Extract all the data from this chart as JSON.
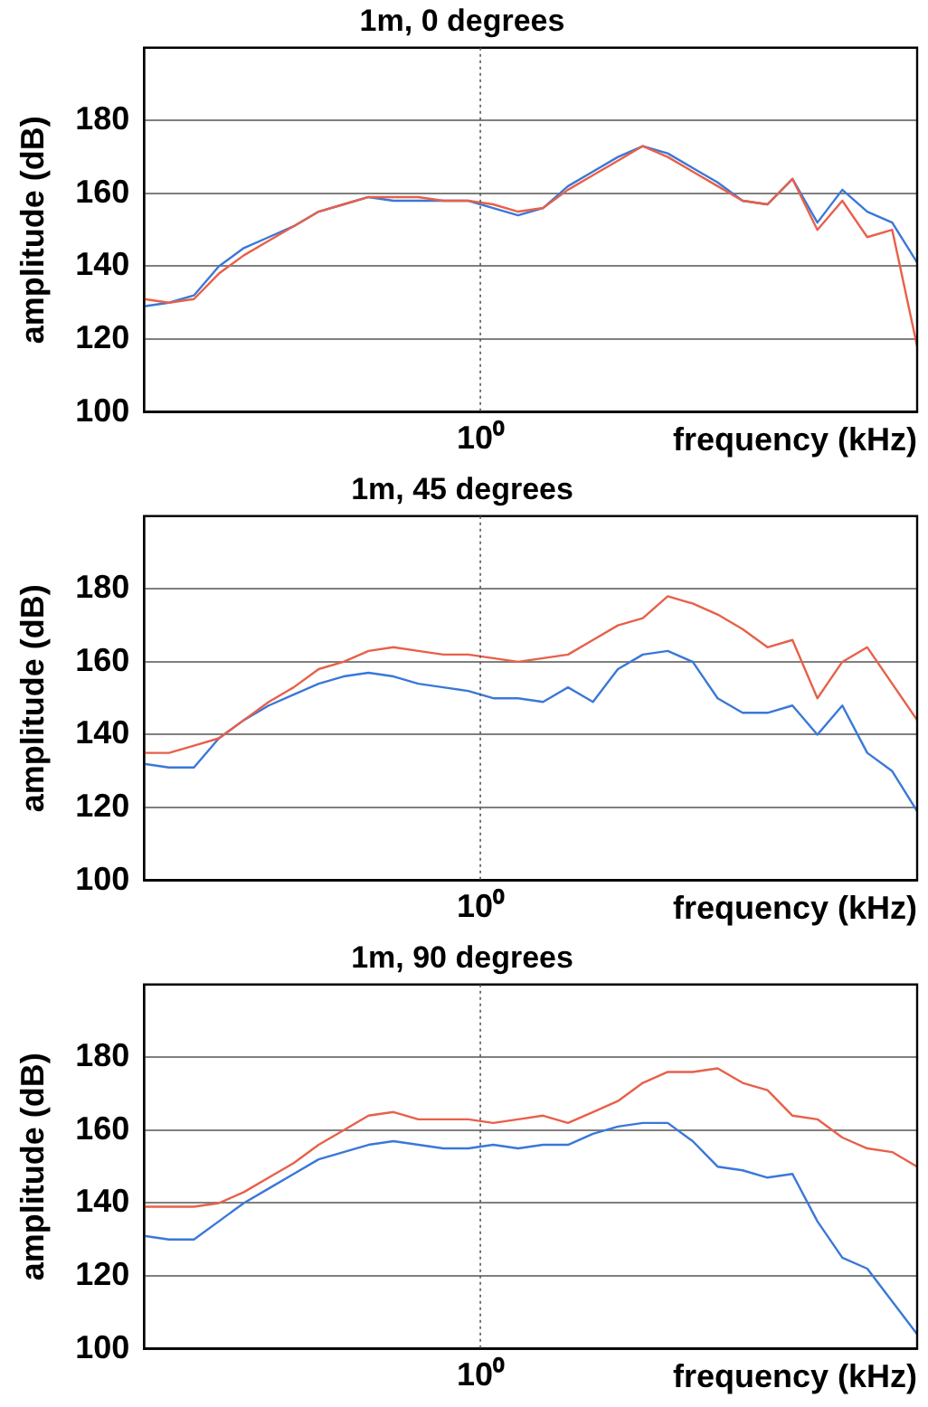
{
  "chart_data": [
    {
      "type": "line",
      "title": "1m, 0 degrees",
      "xlabel": "frequency (kHz)",
      "ylabel": "amplitude (dB)",
      "grid": "y",
      "annotations": [
        "10⁰"
      ],
      "ylim": [
        100,
        200
      ],
      "yticks": [
        100,
        120,
        140,
        160,
        180
      ],
      "categories": [
        null,
        null,
        null,
        null,
        null,
        null,
        null,
        null,
        null,
        null,
        null,
        null,
        null,
        null,
        null,
        null,
        null,
        null,
        null,
        null,
        null,
        null,
        null,
        null,
        null,
        null,
        null,
        null,
        null,
        null,
        null,
        null
      ],
      "series": [
        {
          "color": "#e8604a",
          "values": [
            131,
            130,
            131,
            138,
            143,
            147,
            151,
            155,
            157,
            159,
            159,
            159,
            158,
            158,
            157,
            155,
            156,
            161,
            165,
            169,
            173,
            170,
            166,
            162,
            158,
            157,
            164,
            150,
            158,
            148,
            150,
            118
          ]
        },
        {
          "color": "#3a78d8",
          "values": [
            129,
            130,
            132,
            140,
            145,
            148,
            151,
            155,
            157,
            159,
            158,
            158,
            158,
            158,
            156,
            154,
            156,
            162,
            166,
            170,
            173,
            171,
            167,
            163,
            158,
            157,
            164,
            152,
            161,
            155,
            152,
            141
          ]
        }
      ]
    },
    {
      "type": "line",
      "title": "1m, 45 degrees",
      "xlabel": "frequency (kHz)",
      "ylabel": "amplitude (dB)",
      "grid": "y",
      "annotations": [
        "10⁰"
      ],
      "ylim": [
        100,
        200
      ],
      "yticks": [
        100,
        120,
        140,
        160,
        180
      ],
      "categories": [
        null,
        null,
        null,
        null,
        null,
        null,
        null,
        null,
        null,
        null,
        null,
        null,
        null,
        null,
        null,
        null,
        null,
        null,
        null,
        null,
        null,
        null,
        null,
        null,
        null,
        null,
        null,
        null,
        null,
        null,
        null,
        null
      ],
      "series": [
        {
          "color": "#e8604a",
          "values": [
            135,
            135,
            137,
            139,
            144,
            149,
            153,
            158,
            160,
            163,
            164,
            163,
            162,
            162,
            161,
            160,
            161,
            162,
            166,
            170,
            172,
            178,
            176,
            173,
            169,
            164,
            166,
            150,
            160,
            164,
            154,
            144
          ]
        },
        {
          "color": "#3a78d8",
          "values": [
            132,
            131,
            131,
            139,
            144,
            148,
            151,
            154,
            156,
            157,
            156,
            154,
            153,
            152,
            150,
            150,
            149,
            153,
            149,
            158,
            162,
            163,
            160,
            150,
            146,
            146,
            148,
            140,
            148,
            135,
            130,
            119
          ]
        }
      ]
    },
    {
      "type": "line",
      "title": "1m, 90 degrees",
      "xlabel": "frequency (kHz)",
      "ylabel": "amplitude (dB)",
      "grid": "y",
      "annotations": [
        "10⁰"
      ],
      "ylim": [
        100,
        200
      ],
      "yticks": [
        100,
        120,
        140,
        160,
        180
      ],
      "categories": [
        null,
        null,
        null,
        null,
        null,
        null,
        null,
        null,
        null,
        null,
        null,
        null,
        null,
        null,
        null,
        null,
        null,
        null,
        null,
        null,
        null,
        null,
        null,
        null,
        null,
        null,
        null,
        null,
        null,
        null,
        null,
        null
      ],
      "series": [
        {
          "color": "#e8604a",
          "values": [
            139,
            139,
            139,
            140,
            143,
            147,
            151,
            156,
            160,
            164,
            165,
            163,
            163,
            163,
            162,
            163,
            164,
            162,
            165,
            168,
            173,
            176,
            176,
            177,
            173,
            171,
            164,
            163,
            158,
            155,
            154,
            150
          ]
        },
        {
          "color": "#3a78d8",
          "values": [
            131,
            130,
            130,
            135,
            140,
            144,
            148,
            152,
            154,
            156,
            157,
            156,
            155,
            155,
            156,
            155,
            156,
            156,
            159,
            161,
            162,
            162,
            157,
            150,
            149,
            147,
            148,
            135,
            125,
            122,
            113,
            104
          ]
        }
      ]
    }
  ]
}
